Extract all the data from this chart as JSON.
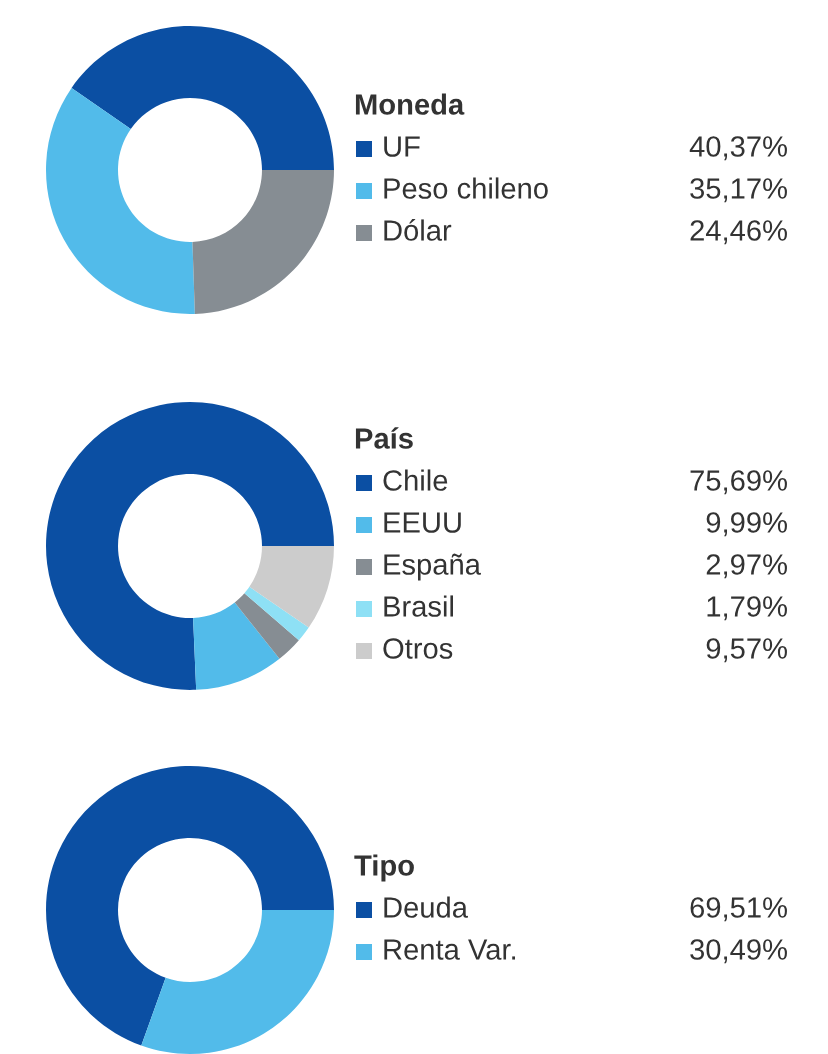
{
  "chart_data": [
    {
      "type": "donut",
      "legend_title": "Moneda",
      "categories": [
        "UF",
        "Peso chileno",
        "Dólar"
      ],
      "values": [
        40.37,
        35.17,
        24.46
      ],
      "colors": [
        "#0b4fa3",
        "#52bbea",
        "#868d93"
      ],
      "value_labels": [
        "40,37%",
        "35,17%",
        "24,46%"
      ],
      "legend": "right"
    },
    {
      "type": "donut",
      "legend_title": "País",
      "categories": [
        "Chile",
        "EEUU",
        "España",
        "Brasil",
        "Otros"
      ],
      "values": [
        75.69,
        9.99,
        2.97,
        1.79,
        9.57
      ],
      "colors": [
        "#0b4fa3",
        "#52bbea",
        "#868d93",
        "#8ee0f5",
        "#cccccc"
      ],
      "value_labels": [
        "75,69%",
        "9,99%",
        "2,97%",
        "1,79%",
        "9,57%"
      ],
      "legend": "right"
    },
    {
      "type": "donut",
      "legend_title": "Tipo",
      "categories": [
        "Deuda",
        "Renta Var."
      ],
      "values": [
        69.51,
        30.49
      ],
      "colors": [
        "#0b4fa3",
        "#52bbea"
      ],
      "value_labels": [
        "69,51%",
        "30,49%"
      ],
      "legend": "right"
    }
  ]
}
